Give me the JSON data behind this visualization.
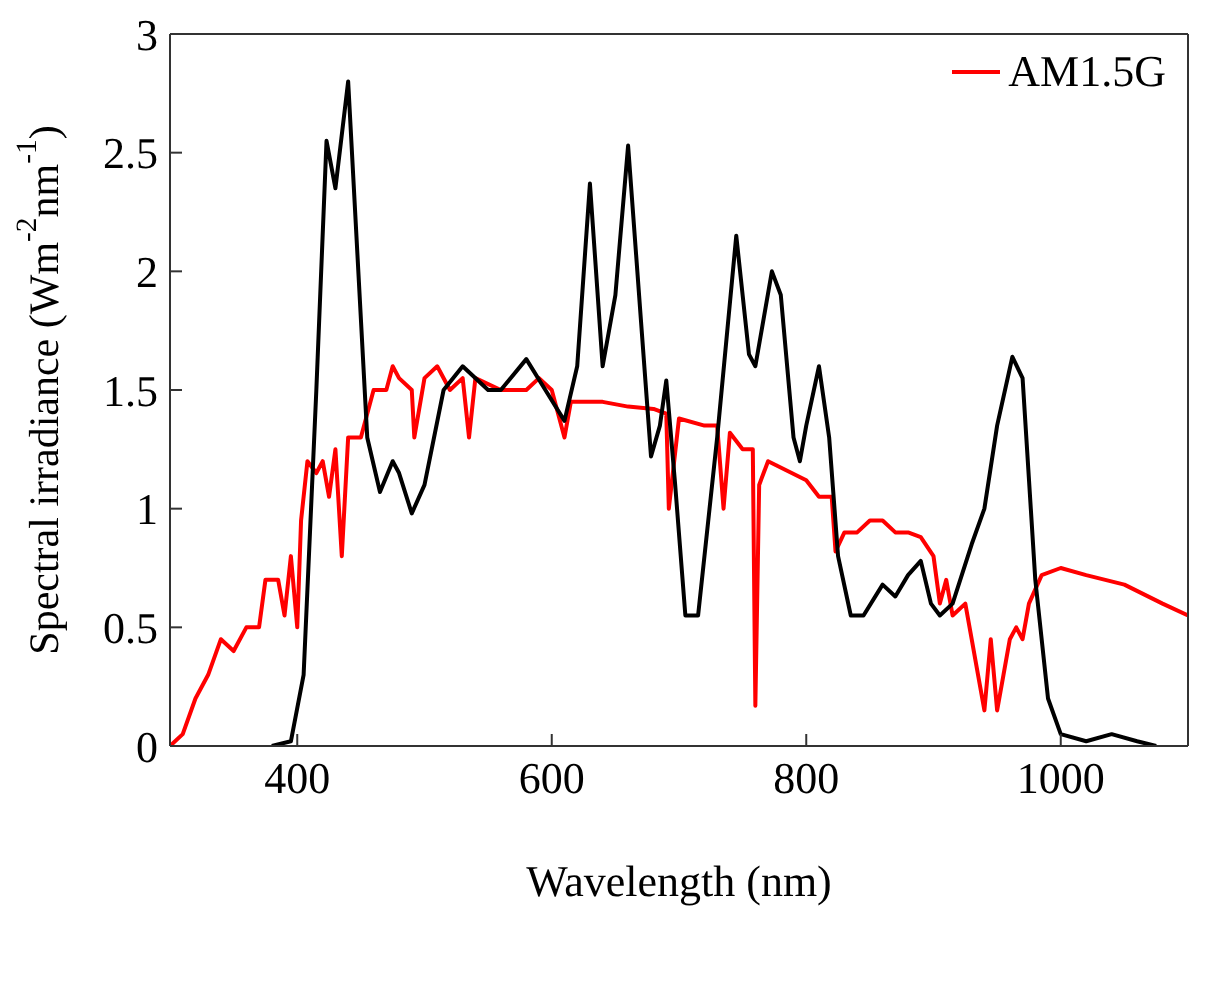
{
  "chart_data": {
    "type": "line",
    "xlabel": "Wavelength (nm)",
    "ylabel": "Spectral irradiance (Wm$^{-2}$nm$^{-1}$)",
    "xlim": [
      300,
      1100
    ],
    "xticks": [
      400,
      600,
      800,
      1000
    ],
    "ylim": [
      0,
      3
    ],
    "yticks": [
      0,
      0.5,
      1,
      1.5,
      2,
      2.5,
      3
    ],
    "legend": "top right",
    "grid": false,
    "marker": "none",
    "line_style": "solid",
    "series": [
      {
        "color": "#000000",
        "x": [
          380,
          395,
          405,
          415,
          423,
          430,
          440,
          448,
          455,
          465,
          475,
          480,
          490,
          500,
          515,
          530,
          550,
          560,
          580,
          595,
          610,
          620,
          630,
          640,
          650,
          660,
          670,
          678,
          685,
          690,
          697,
          705,
          715,
          730,
          745,
          755,
          760,
          773,
          780,
          790,
          795,
          800,
          810,
          818,
          825,
          835,
          845,
          860,
          870,
          880,
          890,
          898,
          905,
          915,
          930,
          940,
          950,
          962,
          970,
          980,
          990,
          1000,
          1020,
          1040,
          1060,
          1075
        ],
        "values": [
          0,
          0.02,
          0.3,
          1.5,
          2.55,
          2.35,
          2.8,
          2.0,
          1.3,
          1.07,
          1.2,
          1.15,
          0.98,
          1.1,
          1.5,
          1.6,
          1.5,
          1.5,
          1.63,
          1.5,
          1.37,
          1.6,
          2.37,
          1.6,
          1.9,
          2.53,
          1.8,
          1.22,
          1.35,
          1.54,
          1.1,
          0.55,
          0.55,
          1.3,
          2.15,
          1.65,
          1.6,
          2.0,
          1.9,
          1.3,
          1.2,
          1.35,
          1.6,
          1.3,
          0.8,
          0.55,
          0.55,
          0.68,
          0.63,
          0.72,
          0.78,
          0.6,
          0.55,
          0.6,
          0.85,
          1.0,
          1.35,
          1.64,
          1.55,
          0.7,
          0.2,
          0.05,
          0.02,
          0.05,
          0.02,
          0
        ]
      },
      {
        "name": "AM1.5G",
        "color": "#ff0000",
        "x": [
          300,
          310,
          320,
          330,
          340,
          350,
          360,
          370,
          375,
          385,
          390,
          395,
          400,
          403,
          408,
          415,
          420,
          425,
          430,
          435,
          440,
          450,
          460,
          470,
          475,
          480,
          490,
          492,
          500,
          510,
          520,
          530,
          535,
          540,
          560,
          580,
          590,
          600,
          610,
          615,
          640,
          660,
          680,
          690,
          692,
          700,
          720,
          730,
          735,
          740,
          750,
          758,
          760,
          763,
          770,
          800,
          810,
          820,
          823,
          830,
          840,
          850,
          860,
          870,
          880,
          890,
          900,
          905,
          910,
          915,
          925,
          930,
          935,
          940,
          945,
          950,
          955,
          960,
          965,
          970,
          975,
          985,
          1000,
          1020,
          1050,
          1080,
          1100
        ],
        "values": [
          0,
          0.05,
          0.2,
          0.3,
          0.45,
          0.4,
          0.5,
          0.5,
          0.7,
          0.7,
          0.55,
          0.8,
          0.5,
          0.95,
          1.2,
          1.15,
          1.2,
          1.05,
          1.25,
          0.8,
          1.3,
          1.3,
          1.5,
          1.5,
          1.6,
          1.55,
          1.5,
          1.3,
          1.55,
          1.6,
          1.5,
          1.55,
          1.3,
          1.55,
          1.5,
          1.5,
          1.55,
          1.5,
          1.3,
          1.45,
          1.45,
          1.43,
          1.42,
          1.4,
          1.0,
          1.38,
          1.35,
          1.35,
          1.0,
          1.32,
          1.25,
          1.25,
          0.17,
          1.1,
          1.2,
          1.12,
          1.05,
          1.05,
          0.82,
          0.9,
          0.9,
          0.95,
          0.95,
          0.9,
          0.9,
          0.88,
          0.8,
          0.6,
          0.7,
          0.55,
          0.6,
          0.45,
          0.3,
          0.15,
          0.45,
          0.15,
          0.3,
          0.45,
          0.5,
          0.45,
          0.6,
          0.72,
          0.75,
          0.72,
          0.68,
          0.6,
          0.55
        ]
      }
    ]
  }
}
